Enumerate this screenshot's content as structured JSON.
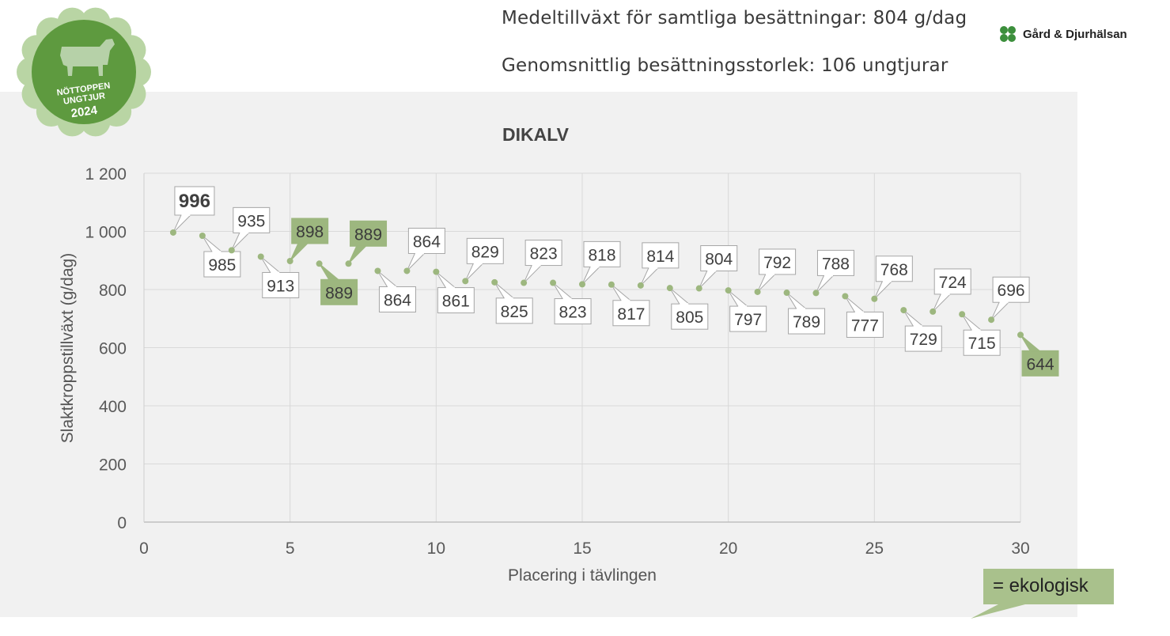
{
  "header": {
    "stat_avg_growth": "Medeltillväxt för samtliga besättningar: 804 g/dag",
    "stat_herd_size": "Genomsnittlig besättningsstorlek: 106 ungtjurar"
  },
  "badge": {
    "line1": "NÖTTOPPEN",
    "line2": "UNGTJUR",
    "year": "2024",
    "fill_color": "#5e9a3f",
    "scallop_color": "#b9d5a4"
  },
  "logo": {
    "name": "Gård & Djurhälsan",
    "icon": "clover-icon",
    "color": "#3c8f3c"
  },
  "legend": {
    "label": "= ekologisk",
    "color": "#a9c18c"
  },
  "chart_data": {
    "type": "scatter",
    "title": "DIKALV",
    "xlabel": "Placering i tävlingen",
    "ylabel": "Slaktkroppstillväxt (g/dag)",
    "xlim": [
      0,
      30
    ],
    "ylim": [
      0,
      1200
    ],
    "xticks": [
      0,
      5,
      10,
      15,
      20,
      25,
      30
    ],
    "yticks": [
      0,
      200,
      400,
      600,
      800,
      1000,
      1200
    ],
    "ytick_labels": [
      "0",
      "200",
      "400",
      "600",
      "800",
      "1 000",
      "1 200"
    ],
    "grid": true,
    "point_color": "#9db77f",
    "highlight_color": "#9db77f",
    "points": [
      {
        "x": 1,
        "y": 996,
        "ecological": false,
        "bold": true
      },
      {
        "x": 2,
        "y": 985,
        "ecological": false
      },
      {
        "x": 3,
        "y": 935,
        "ecological": false
      },
      {
        "x": 4,
        "y": 913,
        "ecological": false
      },
      {
        "x": 5,
        "y": 898,
        "ecological": true
      },
      {
        "x": 6,
        "y": 889,
        "ecological": true
      },
      {
        "x": 7,
        "y": 889,
        "ecological": true
      },
      {
        "x": 8,
        "y": 864,
        "ecological": false
      },
      {
        "x": 9,
        "y": 864,
        "ecological": false
      },
      {
        "x": 10,
        "y": 861,
        "ecological": false
      },
      {
        "x": 11,
        "y": 829,
        "ecological": false
      },
      {
        "x": 12,
        "y": 825,
        "ecological": false
      },
      {
        "x": 13,
        "y": 823,
        "ecological": false
      },
      {
        "x": 14,
        "y": 823,
        "ecological": false
      },
      {
        "x": 15,
        "y": 818,
        "ecological": false
      },
      {
        "x": 16,
        "y": 817,
        "ecological": false
      },
      {
        "x": 17,
        "y": 814,
        "ecological": false
      },
      {
        "x": 18,
        "y": 805,
        "ecological": false
      },
      {
        "x": 19,
        "y": 804,
        "ecological": false
      },
      {
        "x": 20,
        "y": 797,
        "ecological": false
      },
      {
        "x": 21,
        "y": 792,
        "ecological": false
      },
      {
        "x": 22,
        "y": 789,
        "ecological": false
      },
      {
        "x": 23,
        "y": 788,
        "ecological": false
      },
      {
        "x": 24,
        "y": 777,
        "ecological": false
      },
      {
        "x": 25,
        "y": 768,
        "ecological": false
      },
      {
        "x": 26,
        "y": 729,
        "ecological": false
      },
      {
        "x": 27,
        "y": 724,
        "ecological": false
      },
      {
        "x": 28,
        "y": 715,
        "ecological": false
      },
      {
        "x": 29,
        "y": 696,
        "ecological": false
      },
      {
        "x": 30,
        "y": 644,
        "ecological": true
      }
    ]
  }
}
